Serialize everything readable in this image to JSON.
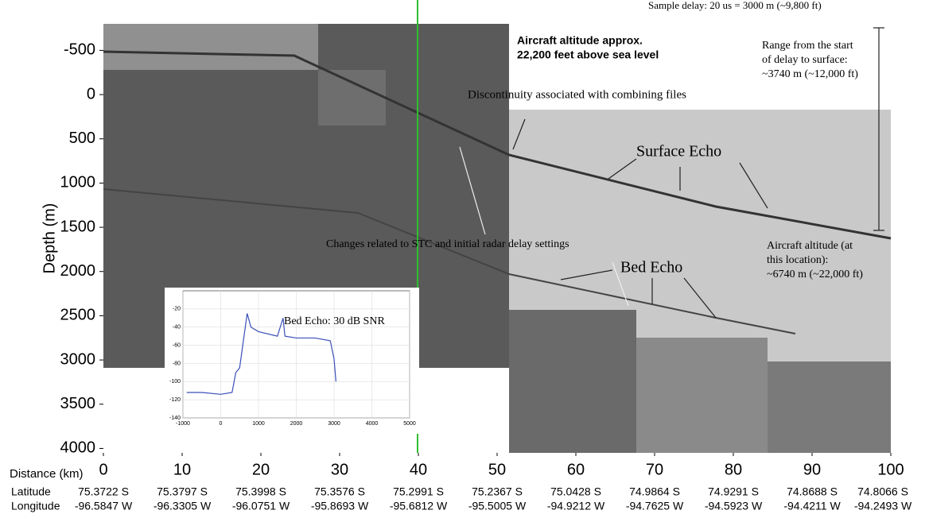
{
  "chart_data": [
    {
      "type": "radargram",
      "ylabel": "Depth (m)",
      "xlabel": "Distance (km)",
      "ylim": [
        -800,
        4050
      ],
      "yticks": [
        -500,
        0,
        500,
        1000,
        1500,
        2000,
        2500,
        3000,
        3500,
        4000
      ],
      "y_reversed": true,
      "xlim": [
        0,
        100
      ],
      "xticks": [
        0,
        10,
        20,
        30,
        40,
        50,
        60,
        70,
        80,
        90,
        100
      ],
      "latitude_label": "Latitude",
      "longitude_label": "Longitude",
      "latitude": [
        "75.3722 S",
        "75.3797 S",
        "75.3998 S",
        "75.3576 S",
        "75.2991 S",
        "75.2367 S",
        "75.0428 S",
        "74.9864 S",
        "74.9291 S",
        "74.8688 S",
        "74.8066 S"
      ],
      "longitude": [
        "-96.5847 W",
        "-96.3305 W",
        "-96.0751 W",
        "-95.8693 W",
        "-95.6812 W",
        "-95.5005 W",
        "-94.9212 W",
        "-94.7625 W",
        "-94.5923 W",
        "-94.4211 W",
        "-94.2493 W"
      ],
      "annotations": [
        [
          "Sample delay: 20 us = 3000 m (~9,800 ft)"
        ],
        [
          "Aircraft altitude approx.",
          "22,200 feet above sea level"
        ],
        [
          "Range from the start",
          "of delay to surface:",
          "~3740 m (~12,000 ft)"
        ],
        [
          "Discontinuity associated with combining files"
        ],
        [
          "Surface Echo"
        ],
        [
          "Changes related to STC and initial radar delay settings"
        ],
        [
          "Bed Echo"
        ],
        [
          "Aircraft altitude (at",
          "this location):",
          "~6740 m (~22,000 ft)"
        ]
      ]
    },
    {
      "type": "line",
      "annotation": "Bed Echo: 30 dB SNR",
      "xlim": [
        -1000,
        5000
      ],
      "xticks": [
        -1000,
        0,
        1000,
        2000,
        3000,
        4000,
        5000
      ],
      "ylim": [
        -140,
        0
      ],
      "yticks": [
        -140,
        -120,
        -100,
        -80,
        -60,
        -40,
        -20
      ],
      "grid": true,
      "series": [
        {
          "color": "#3a4fb8",
          "x": [
            -900,
            -500,
            0,
            300,
            400,
            500,
            600,
            700,
            800,
            1000,
            1500,
            1650,
            1700,
            2000,
            2500,
            2900,
            3000,
            3050
          ],
          "values": [
            -112,
            -112,
            -114,
            -112,
            -90,
            -85,
            -55,
            -25,
            -40,
            -45,
            -50,
            -30,
            -50,
            -52,
            -52,
            -55,
            -75,
            -100
          ]
        }
      ]
    }
  ]
}
